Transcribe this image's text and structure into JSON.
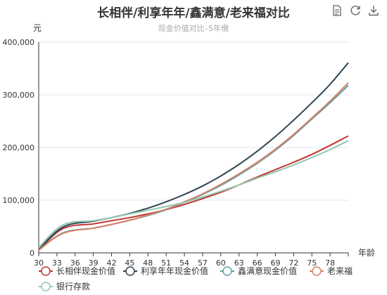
{
  "toolbox": {
    "icons": [
      "data-view-icon",
      "restore-icon",
      "save-image-icon"
    ]
  },
  "colors": {
    "axis": "#333333",
    "grid": "#e0e6f1",
    "series": [
      "#c23531",
      "#2f4554",
      "#61a0a8",
      "#d48265",
      "#91c7ae"
    ]
  },
  "chart_data": {
    "type": "line",
    "title": "长相伴/利享年年/鑫满意/老来福对比",
    "subtitle": "现金价值对比–5年缴",
    "xlabel": "年龄",
    "ylabel": "元",
    "xlim": [
      30,
      81
    ],
    "ylim": [
      0,
      400000
    ],
    "x_ticks": [
      30,
      33,
      36,
      39,
      42,
      45,
      48,
      51,
      54,
      57,
      60,
      63,
      66,
      69,
      72,
      75,
      78
    ],
    "y_ticks": [
      0,
      100000,
      200000,
      300000,
      400000
    ],
    "y_tick_labels": [
      "0",
      "100,000",
      "200,000",
      "300,000",
      "400,000"
    ],
    "legend_position": "bottom",
    "x": [
      30,
      34,
      39,
      42,
      45,
      48,
      51,
      54,
      57,
      60,
      63,
      66,
      69,
      72,
      75,
      78,
      81
    ],
    "series": [
      {
        "name": "长相伴现金价值",
        "values": [
          5000,
          46000,
          55000,
          61000,
          67000,
          74000,
          82000,
          92000,
          103000,
          115000,
          129000,
          144000,
          158000,
          172000,
          187000,
          204000,
          222000
        ]
      },
      {
        "name": "利享年年现金价值",
        "values": [
          6000,
          49000,
          60000,
          67000,
          75000,
          85000,
          97000,
          111000,
          127000,
          146000,
          168000,
          193000,
          221000,
          252000,
          285000,
          320000,
          361000
        ]
      },
      {
        "name": "鑫满意现金价值",
        "values": [
          5000,
          38000,
          47000,
          54000,
          62000,
          71000,
          82000,
          96000,
          111000,
          128000,
          148000,
          170000,
          195000,
          223000,
          254000,
          285000,
          318000
        ]
      },
      {
        "name": "老来福",
        "values": [
          5000,
          37000,
          47000,
          54000,
          62000,
          72000,
          83000,
          97000,
          112000,
          130000,
          150000,
          172000,
          197000,
          225000,
          256000,
          288000,
          323000
        ]
      },
      {
        "name": "银行存款",
        "values": [
          10000,
          53000,
          61000,
          67000,
          74000,
          81000,
          88000,
          96000,
          106000,
          117000,
          129000,
          142000,
          154000,
          167000,
          181000,
          196000,
          213000
        ]
      }
    ]
  }
}
